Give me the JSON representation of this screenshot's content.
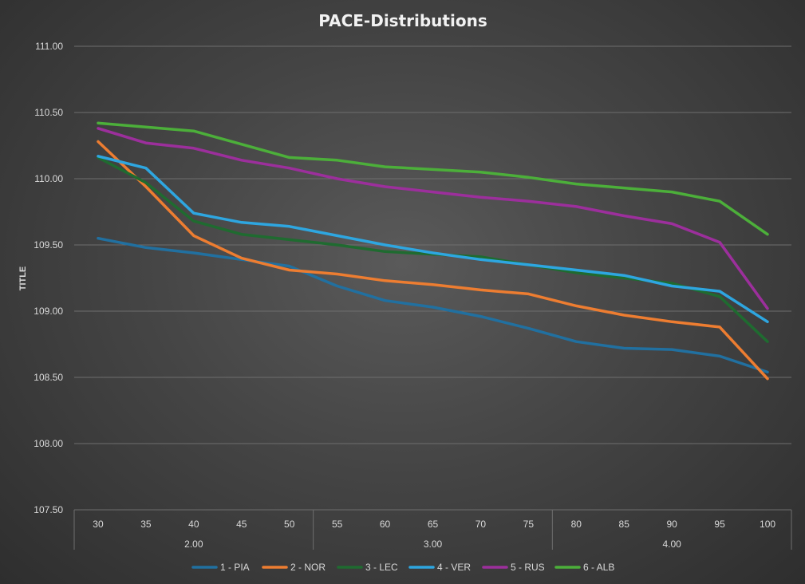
{
  "chart_data": {
    "type": "line",
    "title": "PACE-Distributions",
    "xlabel": "",
    "ylabel": "TITLE",
    "ylim": [
      107.5,
      111.0
    ],
    "ytick_step": 0.5,
    "ytick_labels": [
      "107.50",
      "108.00",
      "108.50",
      "109.00",
      "109.50",
      "110.00",
      "110.50",
      "111.00"
    ],
    "categories": [
      "30",
      "35",
      "40",
      "45",
      "50",
      "55",
      "60",
      "65",
      "70",
      "75",
      "80",
      "85",
      "90",
      "95",
      "100"
    ],
    "groups": [
      {
        "label": "2.00",
        "count": 5
      },
      {
        "label": "3.00",
        "count": 5
      },
      {
        "label": "4.00",
        "count": 5
      }
    ],
    "grid": true,
    "legend_position": "bottom",
    "series": [
      {
        "name": "1 - PIA",
        "color": "#2170a0",
        "values": [
          109.55,
          109.48,
          109.44,
          109.39,
          109.34,
          109.19,
          109.08,
          109.03,
          108.96,
          108.87,
          108.77,
          108.72,
          108.71,
          108.66,
          108.54
        ]
      },
      {
        "name": "2 - NOR",
        "color": "#ed7d31",
        "values": [
          110.28,
          109.94,
          109.57,
          109.4,
          109.31,
          109.28,
          109.23,
          109.2,
          109.16,
          109.13,
          109.04,
          108.97,
          108.92,
          108.88,
          108.49
        ]
      },
      {
        "name": "3 - LEC",
        "color": "#1f6b30",
        "values": [
          110.16,
          109.97,
          109.68,
          109.58,
          109.54,
          109.5,
          109.45,
          109.43,
          109.41,
          109.35,
          109.29,
          109.25,
          109.21,
          109.11,
          108.77
        ]
      },
      {
        "name": "4 - VER",
        "color": "#2ea6e0",
        "values": [
          110.17,
          110.08,
          109.74,
          109.67,
          109.64,
          109.57,
          109.5,
          109.44,
          109.39,
          109.35,
          109.31,
          109.27,
          109.19,
          109.15,
          108.92
        ]
      },
      {
        "name": "5 - RUS",
        "color": "#9c2f9c",
        "values": [
          110.38,
          110.27,
          110.23,
          110.14,
          110.08,
          110.0,
          109.94,
          109.9,
          109.86,
          109.83,
          109.79,
          109.72,
          109.66,
          109.52,
          109.02
        ]
      },
      {
        "name": "6 - ALB",
        "color": "#4caf3a",
        "values": [
          110.42,
          110.39,
          110.36,
          110.26,
          110.16,
          110.14,
          110.09,
          110.07,
          110.05,
          110.01,
          109.96,
          109.93,
          109.9,
          109.83,
          109.58
        ]
      }
    ]
  }
}
